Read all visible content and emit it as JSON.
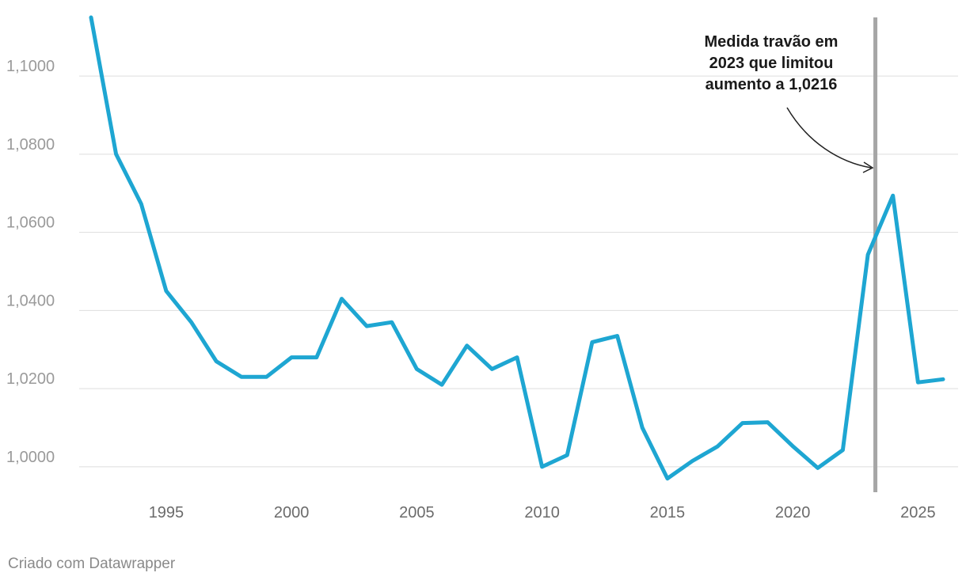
{
  "chart_data": {
    "type": "line",
    "x": [
      1992,
      1993,
      1994,
      1995,
      1996,
      1997,
      1998,
      1999,
      2000,
      2001,
      2002,
      2003,
      2004,
      2005,
      2006,
      2007,
      2008,
      2009,
      2010,
      2011,
      2012,
      2013,
      2014,
      2015,
      2016,
      2017,
      2018,
      2019,
      2020,
      2021,
      2022,
      2023,
      2024,
      2025,
      2026
    ],
    "series": [
      {
        "values": [
          1.115,
          1.08,
          1.0673,
          1.045,
          1.037,
          1.027,
          1.023,
          1.023,
          1.028,
          1.028,
          1.043,
          1.036,
          1.037,
          1.025,
          1.021,
          1.031,
          1.025,
          1.028,
          1.0,
          1.003,
          1.0319,
          1.0335,
          1.01,
          0.997,
          1.0015,
          1.0052,
          1.0112,
          1.0114,
          1.0053,
          0.9997,
          1.0043,
          1.0543,
          1.0694,
          1.0216,
          1.0224
        ],
        "color": "#1ea6d2"
      }
    ],
    "y_ticks": [
      1.0,
      1.02,
      1.04,
      1.06,
      1.08,
      1.1
    ],
    "y_tick_labels": [
      "1,0000",
      "1,0200",
      "1,0400",
      "1,0600",
      "1,0800",
      "1,1000"
    ],
    "x_ticks": [
      1995,
      2000,
      2005,
      2010,
      2015,
      2020,
      2025
    ],
    "x_tick_labels": [
      "1995",
      "2000",
      "2005",
      "2010",
      "2015",
      "2020",
      "2025"
    ],
    "ylim": [
      0.9935,
      1.115
    ],
    "xlim": [
      1992,
      2026
    ],
    "grid": true,
    "vertical_marker": {
      "x": 2023.3,
      "color": "#a6a6a6"
    },
    "annotation": {
      "lines": [
        "Medida travão em",
        "2023 que limitou",
        "aumento a 1,0216"
      ]
    }
  },
  "footer": {
    "text": "Criado com Datawrapper"
  }
}
